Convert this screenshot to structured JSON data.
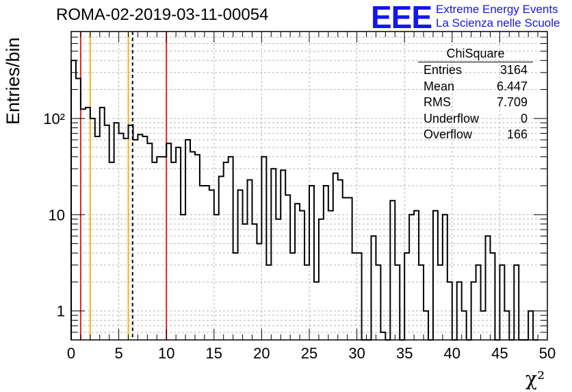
{
  "title": "ROMA-02-2019-03-11-00054",
  "logo": {
    "mark": "EEE",
    "line1": "Extreme Energy Events",
    "line2": "La Scienza nelle Scuole"
  },
  "stats": {
    "name": "ChiSquare",
    "rows": [
      {
        "label": "Entries",
        "value": "3164"
      },
      {
        "label": "Mean",
        "value": "6.447"
      },
      {
        "label": "RMS",
        "value": "7.709"
      },
      {
        "label": "Underflow",
        "value": "0"
      },
      {
        "label": "Overflow",
        "value": "166"
      }
    ]
  },
  "chart_data": {
    "type": "histogram-step",
    "title": "ROMA-02-2019-03-11-00054",
    "xlabel": "χ²",
    "ylabel": "Entries/bin",
    "xlim": [
      0,
      50
    ],
    "ylim": [
      0.5,
      800
    ],
    "yscale": "log",
    "bin_width": 0.5,
    "grid": true,
    "xticks": [
      0,
      5,
      10,
      15,
      20,
      25,
      30,
      35,
      40,
      45,
      50
    ],
    "yticks": [
      {
        "value": 1,
        "label": "1"
      },
      {
        "value": 10,
        "label": "10"
      },
      {
        "value": 100,
        "label": "10²"
      }
    ],
    "values": [
      400,
      260,
      125,
      130,
      100,
      65,
      130,
      85,
      35,
      90,
      70,
      62,
      85,
      60,
      68,
      65,
      55,
      35,
      40,
      40,
      55,
      35,
      50,
      10,
      60,
      45,
      42,
      20,
      20,
      18,
      10,
      25,
      35,
      40,
      4,
      18,
      8,
      23,
      8,
      5,
      40,
      3,
      30,
      9,
      29,
      16,
      4,
      13,
      11,
      3,
      20,
      2,
      9,
      20,
      11,
      27,
      23,
      15,
      15,
      4,
      4,
      0,
      0,
      6,
      3,
      0.6,
      0,
      14,
      3,
      0,
      4,
      10,
      11,
      3,
      1,
      0,
      11,
      3,
      10,
      2,
      0,
      2,
      1,
      0,
      2,
      3,
      1,
      6,
      4,
      0,
      3,
      1,
      0,
      3,
      0,
      0,
      1,
      0
    ],
    "vlines": [
      {
        "x": 1,
        "color": "#e8231e",
        "style": "solid"
      },
      {
        "x": 2,
        "color": "#f2b21b",
        "style": "solid"
      },
      {
        "x": 6,
        "color": "#f2b21b",
        "style": "solid"
      },
      {
        "x": 6.447,
        "color": "#000000",
        "style": "dashed"
      },
      {
        "x": 10,
        "color": "#e8231e",
        "style": "solid"
      }
    ]
  }
}
